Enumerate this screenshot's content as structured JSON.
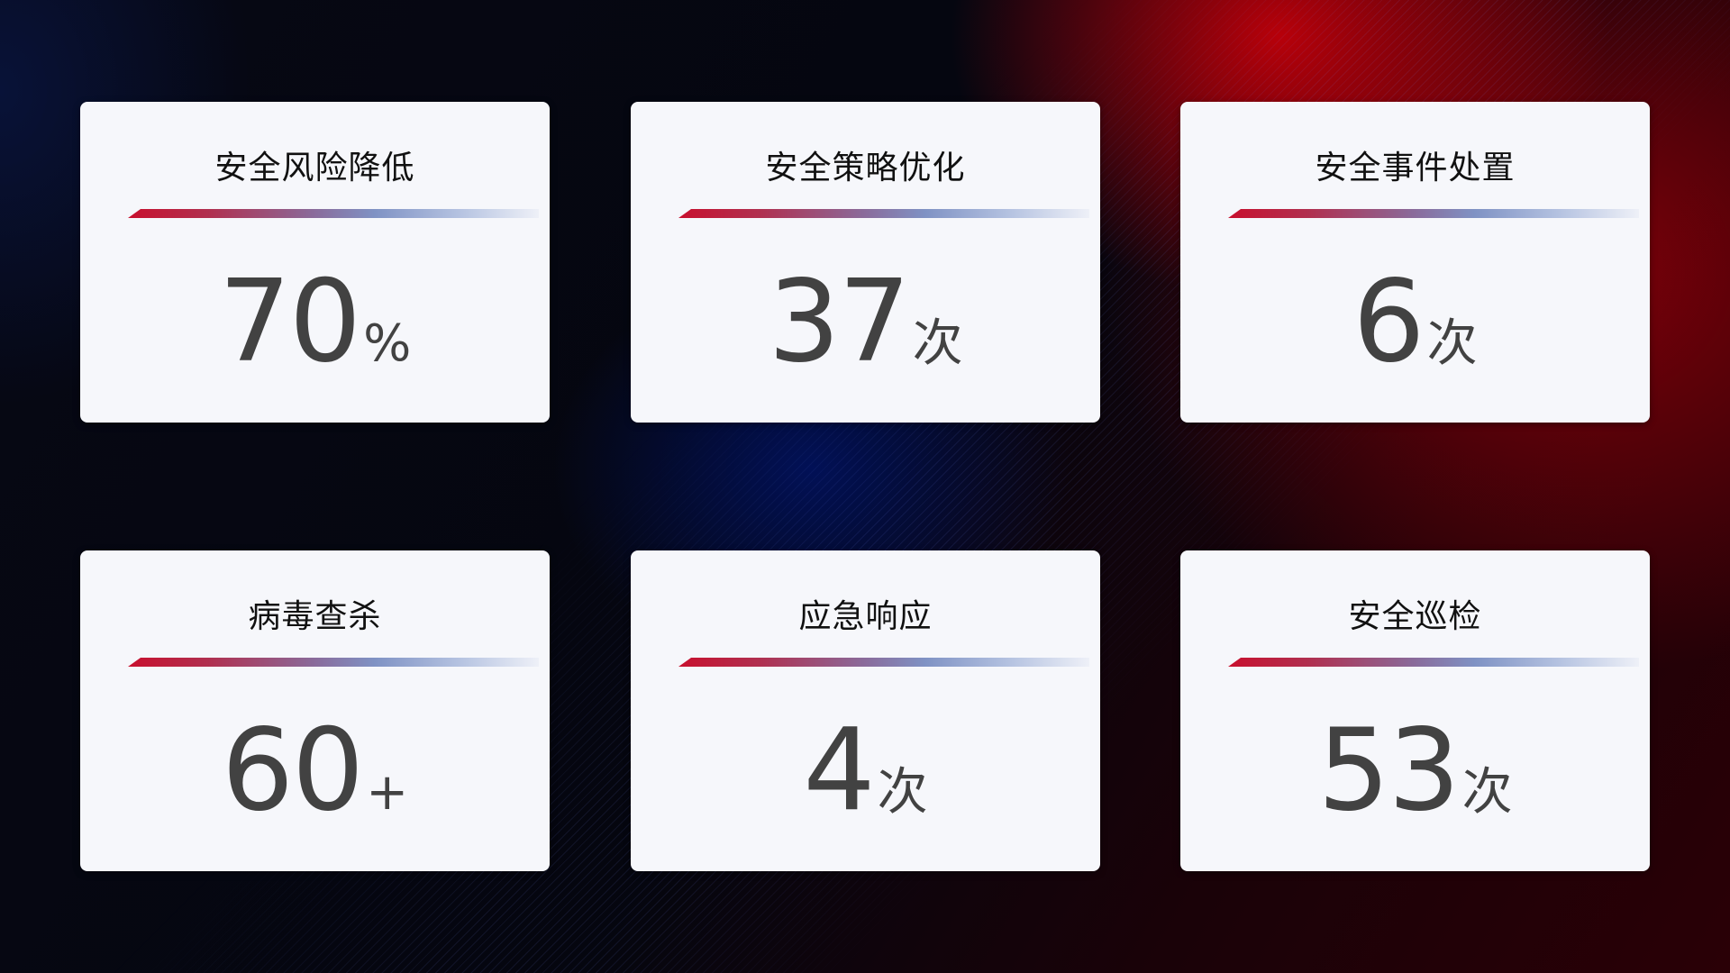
{
  "colors": {
    "accent_red": "#c8102e",
    "accent_blue": "#7f92c4",
    "card_bg": "#f6f7fb",
    "value_text": "#424242"
  },
  "cards": [
    {
      "title": "安全风险降低",
      "value": "70",
      "unit": "%"
    },
    {
      "title": "安全策略优化",
      "value": "37",
      "unit": "次"
    },
    {
      "title": "安全事件处置",
      "value": "6",
      "unit": "次"
    },
    {
      "title": "病毒查杀",
      "value": "60",
      "unit": "+"
    },
    {
      "title": "应急响应",
      "value": "4",
      "unit": "次"
    },
    {
      "title": "安全巡检",
      "value": "53",
      "unit": "次"
    }
  ]
}
